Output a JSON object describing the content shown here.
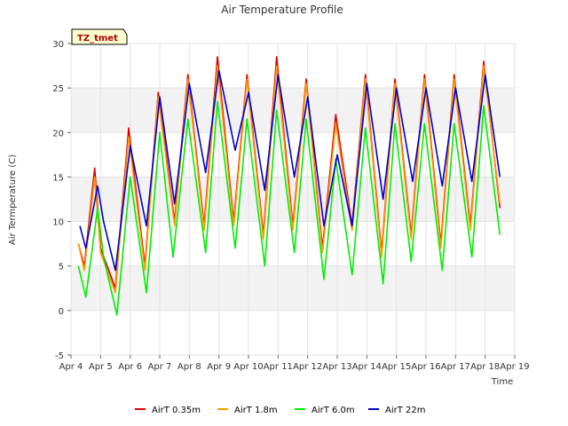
{
  "chart_data": {
    "type": "line",
    "title": "Air Temperature Profile",
    "xlabel": "Time",
    "ylabel": "Air Termperature (C)",
    "badge": "TZ_tmet",
    "xlim": [
      4,
      19
    ],
    "ylim": [
      -5,
      30
    ],
    "x_ticks": [
      {
        "value": 4,
        "label": "Apr 4"
      },
      {
        "value": 5,
        "label": "Apr 5"
      },
      {
        "value": 6,
        "label": "Apr 6"
      },
      {
        "value": 7,
        "label": "Apr 7"
      },
      {
        "value": 8,
        "label": "Apr 8"
      },
      {
        "value": 9,
        "label": "Apr 9"
      },
      {
        "value": 10,
        "label": "Apr 10"
      },
      {
        "value": 11,
        "label": "Apr 11"
      },
      {
        "value": 12,
        "label": "Apr 12"
      },
      {
        "value": 13,
        "label": "Apr 13"
      },
      {
        "value": 14,
        "label": "Apr 14"
      },
      {
        "value": 15,
        "label": "Apr 15"
      },
      {
        "value": 16,
        "label": "Apr 16"
      },
      {
        "value": 17,
        "label": "Apr 17"
      },
      {
        "value": 18,
        "label": "Apr 18"
      },
      {
        "value": 19,
        "label": "Apr 19"
      }
    ],
    "y_ticks": [
      -5,
      0,
      5,
      10,
      15,
      20,
      25,
      30
    ],
    "bands": [
      [
        0,
        5
      ],
      [
        10,
        15
      ],
      [
        20,
        25
      ]
    ],
    "grid": true,
    "legend_position": "bottom",
    "series": [
      {
        "name": "AirT 0.35m",
        "color": "#dd0000",
        "x": [
          4.25,
          4.45,
          4.8,
          5.0,
          5.5,
          5.95,
          6.5,
          6.95,
          7.5,
          7.95,
          8.5,
          8.95,
          9.5,
          9.95,
          10.5,
          10.95,
          11.5,
          11.95,
          12.5,
          12.95,
          13.5,
          13.95,
          14.5,
          14.95,
          15.5,
          15.95,
          16.5,
          16.95,
          17.5,
          17.95,
          18.5
        ],
        "y": [
          7.5,
          5.0,
          16.0,
          7.0,
          2.5,
          20.5,
          5.0,
          24.5,
          10.0,
          26.5,
          9.5,
          28.5,
          10.0,
          26.5,
          8.5,
          28.5,
          9.5,
          26.0,
          7.0,
          22.0,
          9.5,
          26.5,
          6.5,
          26.0,
          8.5,
          26.5,
          7.5,
          26.5,
          9.5,
          28.0,
          11.5
        ]
      },
      {
        "name": "AirT 1.8m",
        "color": "#ff9900",
        "x": [
          4.25,
          4.45,
          4.8,
          5.0,
          5.5,
          5.95,
          6.5,
          6.95,
          7.5,
          7.95,
          8.5,
          8.95,
          9.5,
          9.95,
          10.5,
          10.95,
          11.5,
          11.95,
          12.5,
          12.95,
          13.5,
          13.95,
          14.5,
          14.95,
          15.5,
          15.95,
          16.5,
          16.95,
          17.5,
          17.95,
          18.5
        ],
        "y": [
          7.5,
          4.5,
          15.0,
          6.5,
          2.0,
          19.5,
          4.5,
          24.0,
          9.5,
          26.0,
          9.0,
          27.5,
          9.5,
          26.0,
          8.0,
          27.5,
          9.0,
          25.5,
          6.5,
          21.0,
          9.0,
          26.0,
          6.0,
          25.5,
          8.0,
          26.0,
          7.0,
          26.0,
          9.0,
          27.5,
          12.0
        ]
      },
      {
        "name": "AirT 6.0m",
        "color": "#00ee00",
        "x": [
          4.25,
          4.5,
          4.9,
          5.1,
          5.55,
          6.0,
          6.55,
          7.0,
          7.45,
          7.95,
          8.55,
          8.95,
          9.55,
          9.95,
          10.55,
          10.95,
          11.55,
          11.95,
          12.55,
          12.95,
          13.5,
          13.95,
          14.55,
          14.95,
          15.5,
          15.95,
          16.55,
          16.95,
          17.55,
          17.95,
          18.5
        ],
        "y": [
          5.0,
          1.5,
          11.5,
          6.0,
          -0.5,
          15.0,
          2.0,
          20.0,
          6.0,
          21.5,
          6.5,
          23.5,
          7.0,
          21.5,
          5.0,
          22.5,
          6.5,
          21.5,
          3.5,
          17.0,
          4.0,
          20.5,
          3.0,
          21.0,
          5.5,
          21.0,
          4.5,
          21.0,
          6.0,
          23.0,
          8.5
        ]
      },
      {
        "name": "AirT 22m",
        "color": "#0000cc",
        "x": [
          4.3,
          4.5,
          4.9,
          5.1,
          5.5,
          6.0,
          6.55,
          7.0,
          7.5,
          8.0,
          8.55,
          9.0,
          9.55,
          10.0,
          10.55,
          11.0,
          11.55,
          12.0,
          12.55,
          13.0,
          13.5,
          14.0,
          14.55,
          15.0,
          15.55,
          16.0,
          16.55,
          17.0,
          17.55,
          18.0,
          18.5
        ],
        "y": [
          9.5,
          7.0,
          14.0,
          10.0,
          4.5,
          18.5,
          9.5,
          24.0,
          12.0,
          25.5,
          15.5,
          27.0,
          18.0,
          24.5,
          13.5,
          26.5,
          15.0,
          24.0,
          9.5,
          17.5,
          9.5,
          25.5,
          12.5,
          25.0,
          14.5,
          25.0,
          14.0,
          25.0,
          14.5,
          26.5,
          15.0
        ]
      }
    ]
  }
}
